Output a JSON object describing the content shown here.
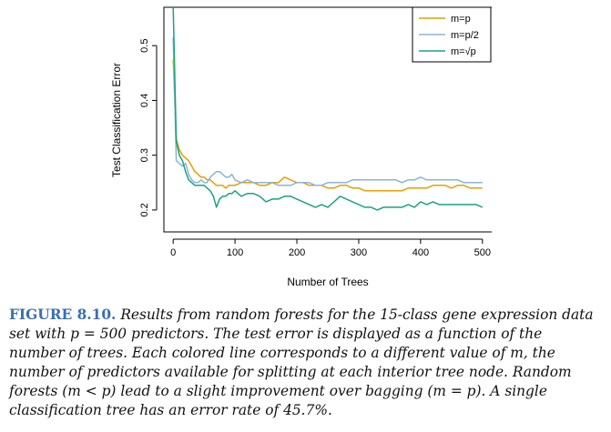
{
  "chart_data": {
    "type": "line",
    "xlabel": "Number of Trees",
    "ylabel": "Test Classification Error",
    "xlim": [
      -15,
      515
    ],
    "ylim": [
      0.16,
      0.57
    ],
    "xticks": [
      0,
      100,
      200,
      300,
      400,
      500
    ],
    "yticks": [
      0.2,
      0.3,
      0.4,
      0.5
    ],
    "xtick_labels": [
      "0",
      "100",
      "200",
      "300",
      "400",
      "500"
    ],
    "ytick_labels": [
      "0.2",
      "0.3",
      "0.4",
      "0.5"
    ],
    "legend_position": "top-right",
    "series": [
      {
        "name": "m=p",
        "color": "#E69F00",
        "x": [
          0,
          5,
          10,
          15,
          20,
          25,
          30,
          35,
          40,
          45,
          50,
          55,
          60,
          65,
          70,
          75,
          80,
          85,
          90,
          95,
          100,
          110,
          120,
          130,
          140,
          150,
          160,
          170,
          180,
          190,
          200,
          210,
          220,
          230,
          240,
          250,
          260,
          270,
          280,
          290,
          300,
          310,
          320,
          330,
          340,
          350,
          360,
          370,
          380,
          390,
          400,
          410,
          420,
          430,
          440,
          450,
          460,
          470,
          480,
          490,
          500
        ],
        "values": [
          0.475,
          0.33,
          0.31,
          0.3,
          0.295,
          0.29,
          0.28,
          0.27,
          0.265,
          0.26,
          0.26,
          0.255,
          0.255,
          0.25,
          0.245,
          0.245,
          0.245,
          0.24,
          0.245,
          0.245,
          0.245,
          0.25,
          0.25,
          0.25,
          0.245,
          0.245,
          0.25,
          0.25,
          0.26,
          0.255,
          0.25,
          0.25,
          0.245,
          0.245,
          0.245,
          0.24,
          0.24,
          0.245,
          0.245,
          0.24,
          0.24,
          0.235,
          0.235,
          0.235,
          0.235,
          0.235,
          0.235,
          0.235,
          0.24,
          0.24,
          0.24,
          0.24,
          0.245,
          0.245,
          0.245,
          0.24,
          0.245,
          0.245,
          0.24,
          0.24,
          0.24
        ]
      },
      {
        "name": "m=p/2",
        "color": "#8AB4D6",
        "x": [
          0,
          5,
          10,
          15,
          20,
          25,
          30,
          35,
          40,
          45,
          50,
          55,
          60,
          65,
          70,
          75,
          80,
          85,
          90,
          95,
          100,
          110,
          120,
          130,
          140,
          150,
          160,
          170,
          180,
          190,
          200,
          210,
          220,
          230,
          240,
          250,
          260,
          270,
          280,
          290,
          300,
          310,
          320,
          330,
          340,
          350,
          360,
          370,
          380,
          390,
          400,
          410,
          420,
          430,
          440,
          450,
          460,
          470,
          480,
          490,
          500
        ],
        "values": [
          0.515,
          0.29,
          0.285,
          0.28,
          0.285,
          0.265,
          0.255,
          0.25,
          0.25,
          0.255,
          0.25,
          0.25,
          0.26,
          0.265,
          0.27,
          0.27,
          0.265,
          0.26,
          0.26,
          0.265,
          0.255,
          0.25,
          0.255,
          0.25,
          0.25,
          0.25,
          0.25,
          0.245,
          0.245,
          0.245,
          0.25,
          0.25,
          0.25,
          0.245,
          0.245,
          0.25,
          0.25,
          0.25,
          0.25,
          0.255,
          0.255,
          0.255,
          0.255,
          0.255,
          0.255,
          0.255,
          0.255,
          0.25,
          0.255,
          0.255,
          0.26,
          0.255,
          0.255,
          0.255,
          0.255,
          0.255,
          0.255,
          0.25,
          0.25,
          0.25,
          0.25
        ]
      },
      {
        "name": "m=√p",
        "color": "#1BA37E",
        "x": [
          0,
          5,
          10,
          15,
          20,
          25,
          30,
          35,
          40,
          45,
          50,
          55,
          60,
          65,
          70,
          75,
          80,
          85,
          90,
          95,
          100,
          110,
          120,
          130,
          140,
          150,
          160,
          170,
          180,
          190,
          200,
          210,
          220,
          230,
          240,
          250,
          260,
          270,
          280,
          290,
          300,
          310,
          320,
          330,
          340,
          350,
          360,
          370,
          380,
          390,
          400,
          410,
          420,
          430,
          440,
          450,
          460,
          470,
          480,
          490,
          500
        ],
        "values": [
          0.57,
          0.325,
          0.3,
          0.29,
          0.27,
          0.255,
          0.25,
          0.245,
          0.245,
          0.245,
          0.245,
          0.24,
          0.235,
          0.225,
          0.205,
          0.22,
          0.225,
          0.225,
          0.23,
          0.23,
          0.235,
          0.225,
          0.23,
          0.23,
          0.225,
          0.215,
          0.22,
          0.22,
          0.225,
          0.225,
          0.22,
          0.215,
          0.21,
          0.205,
          0.21,
          0.205,
          0.215,
          0.225,
          0.22,
          0.215,
          0.21,
          0.205,
          0.205,
          0.2,
          0.205,
          0.205,
          0.205,
          0.205,
          0.21,
          0.205,
          0.215,
          0.21,
          0.215,
          0.21,
          0.21,
          0.21,
          0.21,
          0.21,
          0.21,
          0.21,
          0.205
        ]
      }
    ]
  },
  "caption": {
    "label": "FIGURE 8.10.",
    "text": "Results from random forests for the 15-class gene expression data set with p = 500 predictors. The test error is displayed as a function of the number of trees. Each colored line corresponds to a different value of m, the number of predictors available for splitting at each interior tree node. Random forests (m < p) lead to a slight improvement over bagging (m = p). A single classification tree has an error rate of 45.7%."
  }
}
